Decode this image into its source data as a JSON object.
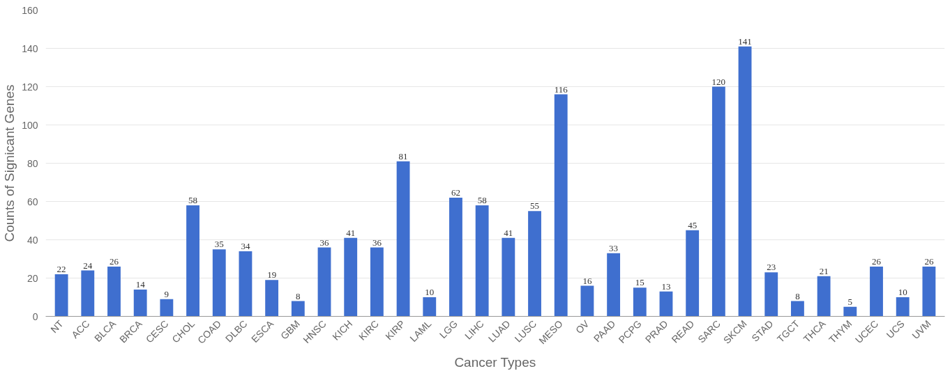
{
  "chart_data": {
    "type": "bar",
    "xlabel": "Cancer Types",
    "ylabel": "Counts of Signicant Genes",
    "categories": [
      "NT",
      "ACC",
      "BLCA",
      "BRCA",
      "CESC",
      "CHOL",
      "COAD",
      "DLBC",
      "ESCA",
      "GBM",
      "HNSC",
      "KICH",
      "KIRC",
      "KIRP",
      "LAML",
      "LGG",
      "LIHC",
      "LUAD",
      "LUSC",
      "MESO",
      "OV",
      "PAAD",
      "PCPG",
      "PRAD",
      "READ",
      "SARC",
      "SKCM",
      "STAD",
      "TGCT",
      "THCA",
      "THYM",
      "UCEC",
      "UCS",
      "UVM"
    ],
    "values": [
      22,
      24,
      26,
      14,
      9,
      58,
      35,
      34,
      19,
      8,
      36,
      41,
      36,
      81,
      10,
      62,
      58,
      41,
      55,
      116,
      16,
      33,
      15,
      13,
      45,
      120,
      141,
      23,
      8,
      21,
      5,
      26,
      10,
      26
    ],
    "color": "#3f6fcf",
    "ylim": [
      0,
      160
    ],
    "yticks": [
      0,
      20,
      40,
      60,
      80,
      100,
      120,
      140,
      160
    ],
    "grid": "y",
    "data_labels": true
  }
}
